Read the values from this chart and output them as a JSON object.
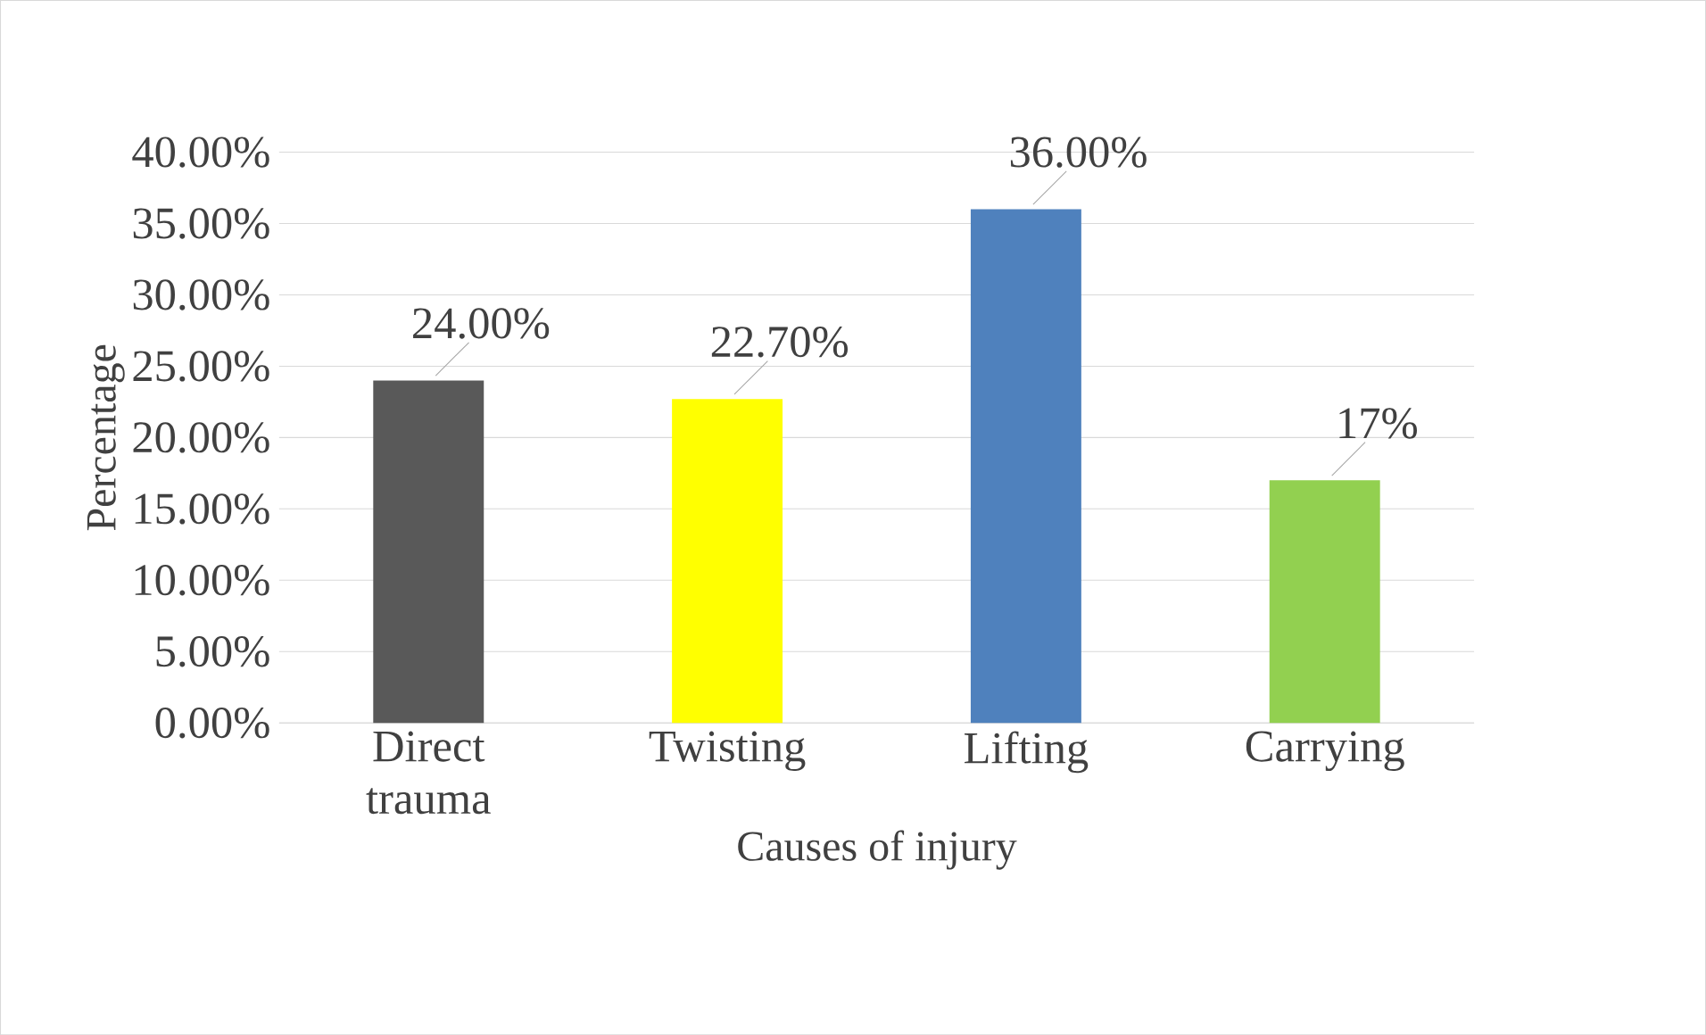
{
  "chart_data": {
    "type": "bar",
    "xlabel": "Causes of injury",
    "ylabel": "Percentage",
    "categories": [
      "Direct trauma",
      "Twisting",
      "Lifting",
      "Carrying"
    ],
    "values": [
      24,
      22.7,
      36,
      17
    ],
    "colors": [
      "#595959",
      "#ffff00",
      "#4f81bd",
      "#92d050"
    ],
    "value_labels": [
      "24.00%",
      "22.70%",
      "36.00%",
      "17%"
    ],
    "ylim": [
      0,
      40
    ],
    "yticks": [
      {
        "value": 0,
        "label": "0.00%"
      },
      {
        "value": 5,
        "label": "5.00%"
      },
      {
        "value": 10,
        "label": "10.00%"
      },
      {
        "value": 15,
        "label": "15.00%"
      },
      {
        "value": 20,
        "label": "20.00%"
      },
      {
        "value": 25,
        "label": "25.00%"
      },
      {
        "value": 30,
        "label": "30.00%"
      },
      {
        "value": 35,
        "label": "35.00%"
      },
      {
        "value": 40,
        "label": "40.00%"
      }
    ],
    "grid": "y"
  }
}
